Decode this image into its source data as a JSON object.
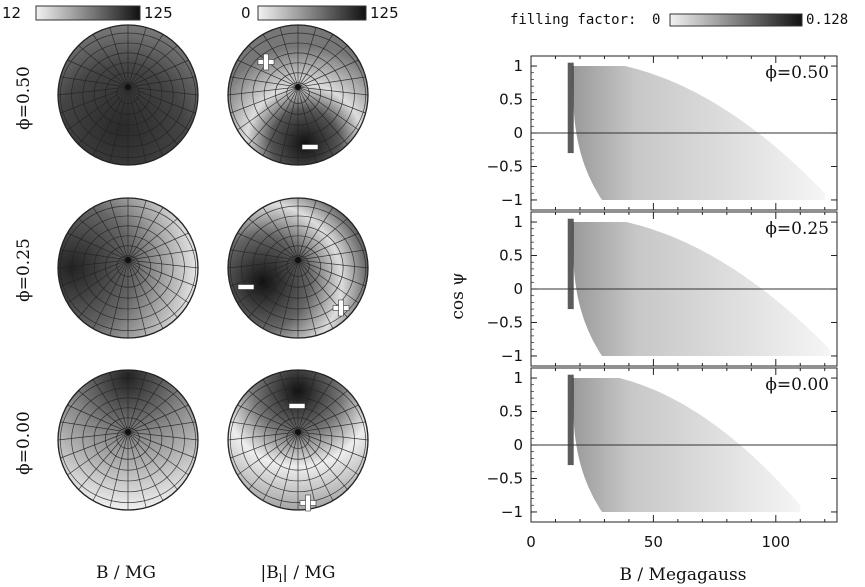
{
  "chart_data": [
    {
      "type": "heatmap",
      "title": "B / MG",
      "colorbar": {
        "min_label": "12",
        "max_label": "125"
      },
      "rows": [
        {
          "phase_label": "ϕ=0.50"
        },
        {
          "phase_label": "ϕ=0.25"
        },
        {
          "phase_label": "ϕ=0.00"
        }
      ]
    },
    {
      "type": "heatmap",
      "title": "|B",
      "title_sub": "l",
      "title_suffix": "| / MG",
      "colorbar": {
        "min_label": "0",
        "max_label": "125"
      },
      "signs": [
        {
          "panel": 0,
          "symbol": "+"
        },
        {
          "panel": 0,
          "symbol": "−"
        },
        {
          "panel": 1,
          "symbol": "−"
        },
        {
          "panel": 1,
          "symbol": "+"
        },
        {
          "panel": 2,
          "symbol": "−"
        },
        {
          "panel": 2,
          "symbol": "+"
        }
      ]
    },
    {
      "type": "heatmap",
      "colorbar": {
        "label": "filling factor:",
        "min_label": "0",
        "max_label": "0.128"
      },
      "xlabel": "B / Megagauss",
      "ylabel": "cos ψ",
      "xlim": [
        0,
        125
      ],
      "ylim": [
        -1.15,
        1.15
      ],
      "xticks": [
        0,
        50,
        100
      ],
      "yticks": [
        1,
        0.5,
        0,
        -0.5,
        -1
      ],
      "ytick_labels": [
        "1",
        "0.5",
        "0",
        "−0.5",
        "−1"
      ],
      "panels": [
        {
          "label": "ϕ=0.50",
          "bmin": 15,
          "bmax": 120
        },
        {
          "label": "ϕ=0.25",
          "bmin": 15,
          "bmax": 122
        },
        {
          "label": "ϕ=0.00",
          "bmin": 15,
          "bmax": 110
        }
      ]
    }
  ]
}
